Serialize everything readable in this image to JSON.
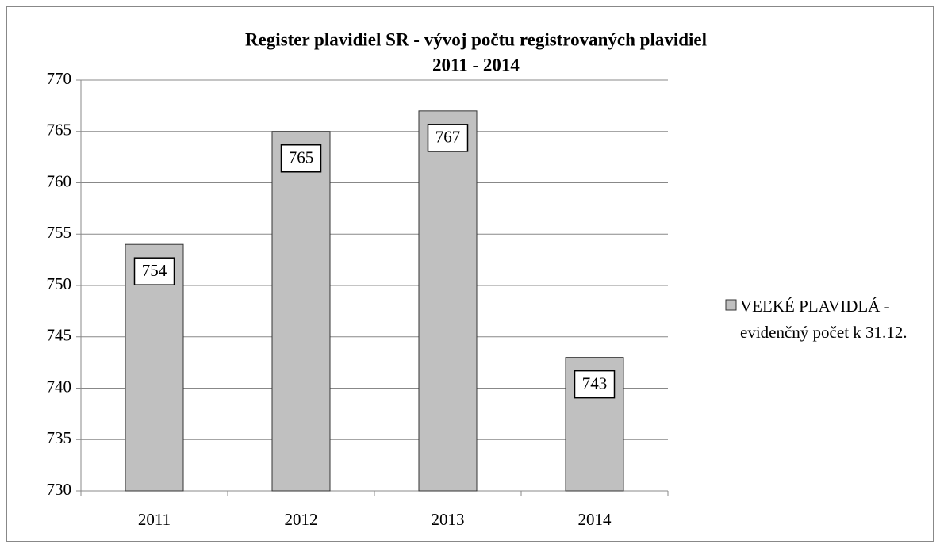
{
  "chart_data": {
    "type": "bar",
    "title": [
      "Register plavidiel SR - vývoj počtu registrovaných plavidiel",
      "2011 - 2014"
    ],
    "categories": [
      "2011",
      "2012",
      "2013",
      "2014"
    ],
    "series": [
      {
        "name": "VEĽKÉ PLAVIDLÁ - evidenčný počet k 31.12.",
        "color": "#c0c0c0",
        "values": [
          754,
          765,
          767,
          743
        ]
      }
    ],
    "ylim": [
      730,
      770
    ],
    "yticks": [
      730,
      735,
      740,
      745,
      750,
      755,
      760,
      765,
      770
    ],
    "grid": true,
    "legend": "right",
    "data_labels": true
  }
}
